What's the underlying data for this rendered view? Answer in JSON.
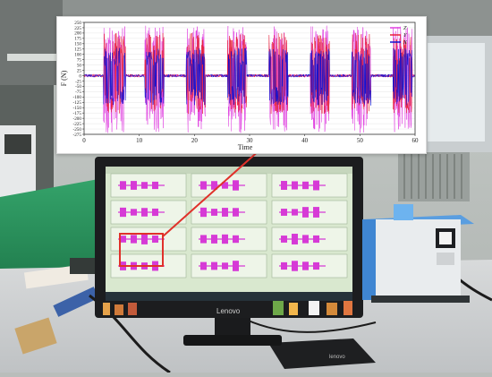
{
  "chart_data": {
    "type": "line",
    "xlabel": "Time",
    "ylabel": "F (N)",
    "xlim": [
      0,
      60
    ],
    "ylim": [
      -275,
      250
    ],
    "x_ticks": [
      "0",
      "10",
      "20",
      "30",
      "40",
      "50",
      "60"
    ],
    "y_ticks": [
      "250",
      "225",
      "200",
      "175",
      "150",
      "125",
      "100",
      "75",
      "50",
      "25",
      "0",
      "-25",
      "-50",
      "-75",
      "-100",
      "-125",
      "-150",
      "-175",
      "-200",
      "-225",
      "-250",
      "-275"
    ],
    "legend": "top-right",
    "series": [
      {
        "name": "Z",
        "color": "#e040e0",
        "bursts": [
          [
            3.5,
            7.5
          ],
          [
            11,
            14.5
          ],
          [
            18.5,
            22
          ],
          [
            26,
            29.5
          ],
          [
            33.5,
            37
          ],
          [
            41,
            44.5
          ],
          [
            48.5,
            52
          ],
          [
            56,
            59.5
          ]
        ],
        "peak": [
          -270,
          235
        ],
        "baseline": 0
      },
      {
        "name": "Y",
        "color": "#e8203a",
        "bursts": [
          [
            3.5,
            7.5
          ],
          [
            11,
            14.5
          ],
          [
            18.5,
            22
          ],
          [
            26,
            29.5
          ],
          [
            33.5,
            37
          ],
          [
            41,
            44.5
          ],
          [
            48.5,
            52
          ],
          [
            56,
            59.5
          ]
        ],
        "peak": [
          -180,
          200
        ],
        "baseline": 0
      },
      {
        "name": "X",
        "color": "#1010d0",
        "bursts": [
          [
            3.5,
            7.5
          ],
          [
            11,
            14.5
          ],
          [
            18.5,
            22
          ],
          [
            26,
            29.5
          ],
          [
            33.5,
            37
          ],
          [
            41,
            44.5
          ],
          [
            48.5,
            52
          ],
          [
            56,
            59.5
          ]
        ],
        "peak": [
          -140,
          130
        ],
        "baseline": 0
      }
    ]
  },
  "monitor": {
    "brand": "Lenovo",
    "keyboard_brand": "lenovo"
  },
  "colors": {
    "screen_bg": "#d9e8cf",
    "waveform": "#d63ad6",
    "highlight_box": "#e0302a",
    "arrow": "#e0302a"
  }
}
